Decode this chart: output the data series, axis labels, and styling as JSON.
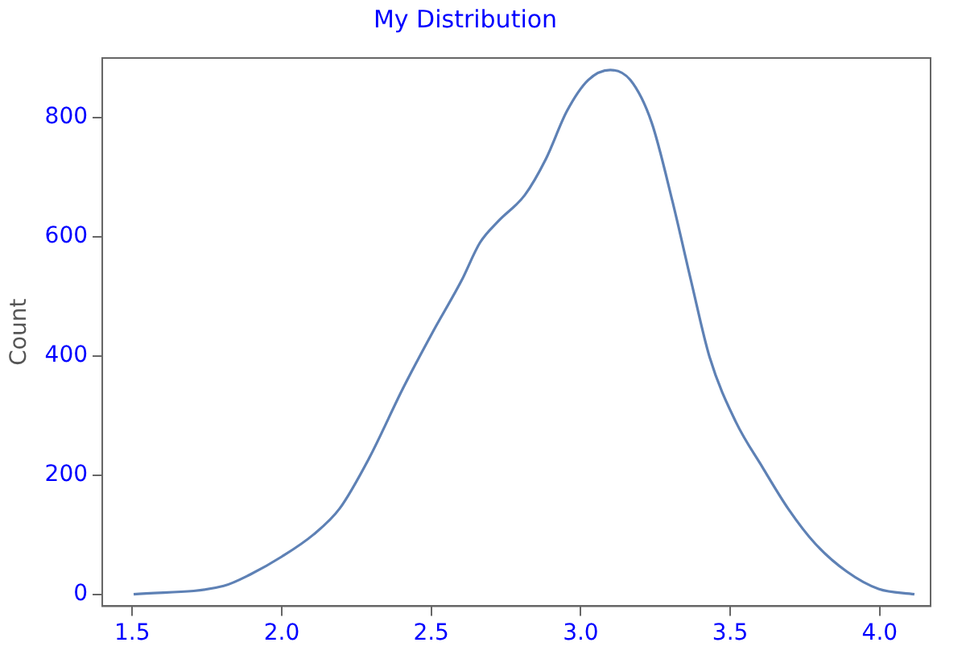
{
  "chart_data": {
    "type": "line",
    "title": "My Distribution",
    "ylabel": "Count",
    "x": [
      1.505,
      1.806,
      1.894,
      2.0,
      2.106,
      2.194,
      2.292,
      2.406,
      2.504,
      2.601,
      2.663,
      2.724,
      2.813,
      2.883,
      2.954,
      3.025,
      3.099,
      3.166,
      3.237,
      3.307,
      3.369,
      3.431,
      3.519,
      3.608,
      3.696,
      3.784,
      3.89,
      3.996,
      4.116
    ],
    "series": [
      {
        "color": "#5e81b5",
        "values": [
          0,
          14,
          33,
          63,
          100,
          144,
          228,
          346,
          439,
          526,
          590,
          626,
          670,
          730,
          811,
          863,
          880,
          863,
          792,
          659,
          526,
          398,
          289,
          213,
          142,
          85,
          38,
          9,
          0
        ]
      }
    ],
    "xlim": [
      1.4,
      4.17
    ],
    "ylim": [
      -20,
      900
    ],
    "xticks": [
      {
        "value": 1.5,
        "label": "1.5"
      },
      {
        "value": 2.0,
        "label": "2.0"
      },
      {
        "value": 2.5,
        "label": "2.5"
      },
      {
        "value": 3.0,
        "label": "3.0"
      },
      {
        "value": 3.5,
        "label": "3.5"
      },
      {
        "value": 4.0,
        "label": "4.0"
      }
    ],
    "yticks": [
      0,
      200,
      400,
      600,
      800
    ],
    "grid": false,
    "legend": false,
    "marker": "none",
    "line_style": "solid"
  }
}
